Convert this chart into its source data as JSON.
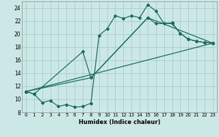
{
  "xlabel": "Humidex (Indice chaleur)",
  "background_color": "#cce8e6",
  "grid_color": "#aacfcd",
  "line_color": "#1a6b5a",
  "xlim": [
    -0.5,
    23.5
  ],
  "ylim": [
    8,
    25
  ],
  "xticks": [
    0,
    1,
    2,
    3,
    4,
    5,
    6,
    7,
    8,
    9,
    10,
    11,
    12,
    13,
    14,
    15,
    16,
    17,
    18,
    19,
    20,
    21,
    22,
    23
  ],
  "yticks": [
    8,
    10,
    12,
    14,
    16,
    18,
    20,
    22,
    24
  ],
  "series1_x": [
    0,
    1,
    2,
    3,
    4,
    5,
    6,
    7,
    8,
    9,
    10,
    11,
    12,
    13,
    14,
    15,
    16,
    17,
    18,
    19,
    20,
    21,
    22,
    23
  ],
  "series1_y": [
    11.2,
    10.8,
    9.5,
    9.8,
    8.9,
    9.2,
    8.8,
    8.9,
    9.4,
    19.8,
    20.8,
    22.8,
    22.4,
    22.8,
    22.5,
    24.5,
    23.5,
    21.6,
    21.7,
    20.1,
    19.2,
    18.9,
    18.7,
    18.6
  ],
  "series2_x": [
    0,
    1,
    7,
    8,
    15,
    16,
    18,
    19,
    20,
    21,
    22,
    23
  ],
  "series2_y": [
    11.2,
    10.8,
    17.3,
    13.3,
    22.5,
    21.6,
    21.6,
    20.1,
    19.2,
    18.9,
    18.7,
    18.6
  ],
  "series3_x": [
    0,
    23
  ],
  "series3_y": [
    11.2,
    18.6
  ],
  "series4_x": [
    0,
    8,
    15,
    23
  ],
  "series4_y": [
    11.2,
    13.3,
    22.5,
    18.6
  ]
}
